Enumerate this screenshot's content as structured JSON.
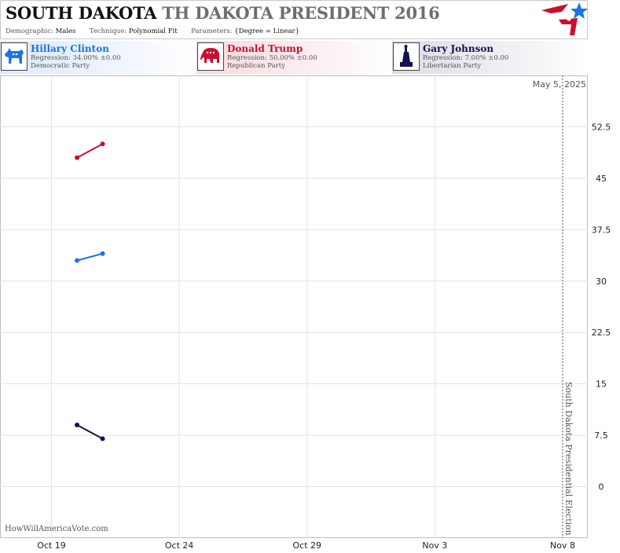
{
  "header": {
    "title_state": "SOUTH DAKOTA",
    "title_race": "TH DAKOTA PRESIDENT 2016",
    "demographic_label": "Demographic:",
    "demographic_value": "Males",
    "technique_label": "Technique:",
    "technique_value": "Polynomial Fit",
    "parameters_label": "Parameters:",
    "parameters_value": "{Degree = Linear}"
  },
  "candidates": [
    {
      "name": "Hillary Clinton",
      "regression": "Regression: 34.00% ±0.00",
      "party": "Democratic Party",
      "color": "#1a73e8",
      "icon": "donkey-icon"
    },
    {
      "name": "Donald Trump",
      "regression": "Regression: 50.00% ±0.00",
      "party": "Republican Party",
      "color": "#c8102e",
      "icon": "elephant-icon"
    },
    {
      "name": "Gary Johnson",
      "regression": "Regression: 7.00% ±0.00",
      "party": "Libertarian Party",
      "color": "#14134f",
      "icon": "statue-of-liberty-icon"
    }
  ],
  "watermark": "HowWillAmericaVote.com",
  "chart_data": {
    "type": "line",
    "x_ticks": [
      "Oct 19",
      "Oct 24",
      "Oct 29",
      "Nov 3",
      "Nov 8"
    ],
    "y_ticks": [
      "0",
      "7.5",
      "15",
      "22.5",
      "30",
      "37.5",
      "45",
      "52.5"
    ],
    "ylim": [
      -7.5,
      60
    ],
    "xlim": [
      "2016-10-17",
      "2016-11-09"
    ],
    "grid": true,
    "today_label": "May 5, 2025",
    "election_label": "South Dakota Presidential Election",
    "election_date": "2016-11-08",
    "series": [
      {
        "name": "Donald Trump",
        "color": "#c8102e",
        "points": [
          [
            "2016-10-20",
            48
          ],
          [
            "2016-10-21",
            50
          ]
        ]
      },
      {
        "name": "Hillary Clinton",
        "color": "#1a73e8",
        "points": [
          [
            "2016-10-20",
            33
          ],
          [
            "2016-10-21",
            34
          ]
        ]
      },
      {
        "name": "Gary Johnson",
        "color": "#14134f",
        "points": [
          [
            "2016-10-20",
            9
          ],
          [
            "2016-10-21",
            7
          ]
        ]
      }
    ]
  }
}
